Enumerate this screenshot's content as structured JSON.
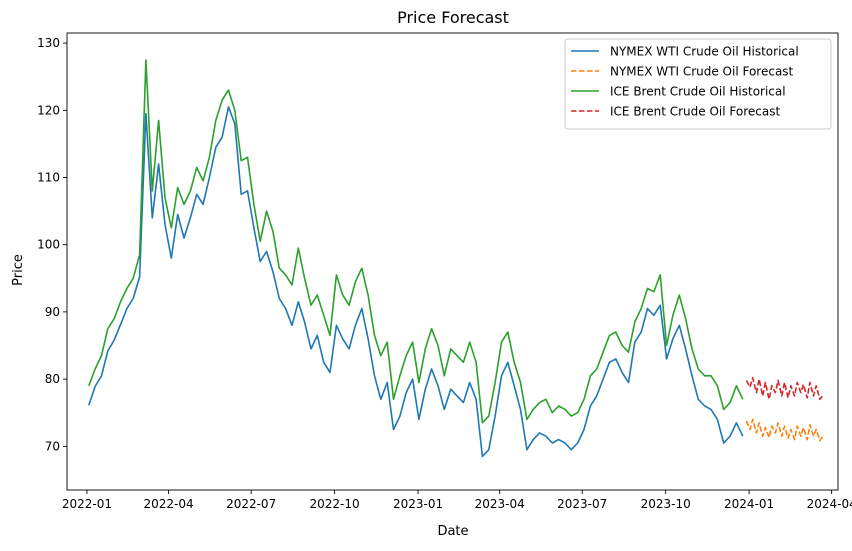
{
  "chart_data": {
    "type": "line",
    "title": "Price Forecast",
    "xlabel": "Date",
    "ylabel": "Price",
    "x_ticks": [
      "2022-01",
      "2022-04",
      "2022-07",
      "2022-10",
      "2023-01",
      "2023-04",
      "2023-07",
      "2023-10",
      "2024-01",
      "2024-04"
    ],
    "y_ticks": [
      "70",
      "80",
      "90",
      "100",
      "110",
      "120",
      "130"
    ],
    "xlim": [
      "2021-12-10",
      "2024-04-08"
    ],
    "ylim": [
      63.5,
      131.5
    ],
    "grid": false,
    "legend_position": "top-right",
    "series": [
      {
        "name": "NYMEX WTI Crude Oil Historical",
        "color": "#1f77b4",
        "dash": "solid",
        "points": [
          [
            "2022-01-03",
            76.1
          ],
          [
            "2022-01-10",
            78.9
          ],
          [
            "2022-01-17",
            80.5
          ],
          [
            "2022-01-24",
            84.2
          ],
          [
            "2022-01-31",
            85.8
          ],
          [
            "2022-02-07",
            88.1
          ],
          [
            "2022-02-14",
            90.5
          ],
          [
            "2022-02-21",
            92.0
          ],
          [
            "2022-02-28",
            95.2
          ],
          [
            "2022-03-07",
            119.5
          ],
          [
            "2022-03-14",
            104.0
          ],
          [
            "2022-03-21",
            112.0
          ],
          [
            "2022-03-28",
            103.0
          ],
          [
            "2022-04-04",
            98.0
          ],
          [
            "2022-04-11",
            104.5
          ],
          [
            "2022-04-18",
            101.0
          ],
          [
            "2022-04-25",
            104.0
          ],
          [
            "2022-05-02",
            107.5
          ],
          [
            "2022-05-09",
            106.0
          ],
          [
            "2022-05-16",
            110.0
          ],
          [
            "2022-05-23",
            114.5
          ],
          [
            "2022-05-30",
            116.0
          ],
          [
            "2022-06-06",
            120.5
          ],
          [
            "2022-06-13",
            118.0
          ],
          [
            "2022-06-20",
            107.5
          ],
          [
            "2022-06-27",
            108.0
          ],
          [
            "2022-07-04",
            102.5
          ],
          [
            "2022-07-11",
            97.5
          ],
          [
            "2022-07-18",
            99.0
          ],
          [
            "2022-07-25",
            96.0
          ],
          [
            "2022-08-01",
            92.0
          ],
          [
            "2022-08-08",
            90.5
          ],
          [
            "2022-08-15",
            88.0
          ],
          [
            "2022-08-22",
            91.5
          ],
          [
            "2022-08-29",
            88.5
          ],
          [
            "2022-09-05",
            84.5
          ],
          [
            "2022-09-12",
            86.5
          ],
          [
            "2022-09-19",
            82.5
          ],
          [
            "2022-09-26",
            81.0
          ],
          [
            "2022-10-03",
            88.0
          ],
          [
            "2022-10-10",
            86.0
          ],
          [
            "2022-10-17",
            84.5
          ],
          [
            "2022-10-24",
            88.0
          ],
          [
            "2022-10-31",
            90.5
          ],
          [
            "2022-11-07",
            86.0
          ],
          [
            "2022-11-14",
            80.5
          ],
          [
            "2022-11-21",
            77.0
          ],
          [
            "2022-11-28",
            79.5
          ],
          [
            "2022-12-05",
            72.5
          ],
          [
            "2022-12-12",
            74.5
          ],
          [
            "2022-12-19",
            78.0
          ],
          [
            "2022-12-26",
            80.0
          ],
          [
            "2023-01-02",
            74.0
          ],
          [
            "2023-01-09",
            78.5
          ],
          [
            "2023-01-16",
            81.5
          ],
          [
            "2023-01-23",
            79.0
          ],
          [
            "2023-01-30",
            75.5
          ],
          [
            "2023-02-06",
            78.5
          ],
          [
            "2023-02-13",
            77.5
          ],
          [
            "2023-02-20",
            76.5
          ],
          [
            "2023-02-27",
            79.5
          ],
          [
            "2023-03-06",
            77.0
          ],
          [
            "2023-03-13",
            68.5
          ],
          [
            "2023-03-20",
            69.5
          ],
          [
            "2023-03-27",
            74.5
          ],
          [
            "2023-04-03",
            80.5
          ],
          [
            "2023-04-10",
            82.5
          ],
          [
            "2023-04-17",
            79.0
          ],
          [
            "2023-04-24",
            75.5
          ],
          [
            "2023-05-01",
            69.5
          ],
          [
            "2023-05-08",
            71.0
          ],
          [
            "2023-05-15",
            72.0
          ],
          [
            "2023-05-22",
            71.5
          ],
          [
            "2023-05-29",
            70.5
          ],
          [
            "2023-06-05",
            71.0
          ],
          [
            "2023-06-12",
            70.5
          ],
          [
            "2023-06-19",
            69.5
          ],
          [
            "2023-06-26",
            70.5
          ],
          [
            "2023-07-03",
            72.5
          ],
          [
            "2023-07-10",
            76.0
          ],
          [
            "2023-07-17",
            77.5
          ],
          [
            "2023-07-24",
            80.0
          ],
          [
            "2023-07-31",
            82.5
          ],
          [
            "2023-08-07",
            83.0
          ],
          [
            "2023-08-14",
            81.0
          ],
          [
            "2023-08-21",
            79.5
          ],
          [
            "2023-08-28",
            85.5
          ],
          [
            "2023-09-04",
            87.0
          ],
          [
            "2023-09-11",
            90.5
          ],
          [
            "2023-09-18",
            89.5
          ],
          [
            "2023-09-25",
            91.0
          ],
          [
            "2023-10-02",
            83.0
          ],
          [
            "2023-10-09",
            86.0
          ],
          [
            "2023-10-16",
            88.0
          ],
          [
            "2023-10-23",
            84.5
          ],
          [
            "2023-10-30",
            80.5
          ],
          [
            "2023-11-06",
            77.0
          ],
          [
            "2023-11-13",
            76.0
          ],
          [
            "2023-11-20",
            75.5
          ],
          [
            "2023-11-27",
            74.0
          ],
          [
            "2023-12-04",
            70.5
          ],
          [
            "2023-12-11",
            71.5
          ],
          [
            "2023-12-18",
            73.5
          ],
          [
            "2023-12-25",
            71.5
          ]
        ]
      },
      {
        "name": "NYMEX WTI Crude Oil Forecast",
        "color": "#ff7f0e",
        "dash": "dashed",
        "points": [
          [
            "2023-12-29",
            73.8
          ],
          [
            "2024-01-02",
            72.5
          ],
          [
            "2024-01-05",
            74.0
          ],
          [
            "2024-01-09",
            72.0
          ],
          [
            "2024-01-12",
            73.5
          ],
          [
            "2024-01-16",
            71.5
          ],
          [
            "2024-01-19",
            72.8
          ],
          [
            "2024-01-23",
            71.3
          ],
          [
            "2024-01-26",
            73.0
          ],
          [
            "2024-01-30",
            72.0
          ],
          [
            "2024-02-02",
            73.5
          ],
          [
            "2024-02-06",
            71.5
          ],
          [
            "2024-02-09",
            73.0
          ],
          [
            "2024-02-13",
            71.2
          ],
          [
            "2024-02-16",
            72.5
          ],
          [
            "2024-02-20",
            71.0
          ],
          [
            "2024-02-23",
            73.0
          ],
          [
            "2024-02-27",
            71.5
          ],
          [
            "2024-03-01",
            72.8
          ],
          [
            "2024-03-05",
            71.0
          ],
          [
            "2024-03-08",
            73.2
          ],
          [
            "2024-03-12",
            71.5
          ],
          [
            "2024-03-15",
            72.5
          ],
          [
            "2024-03-19",
            70.8
          ],
          [
            "2024-03-22",
            71.5
          ]
        ]
      },
      {
        "name": "ICE Brent Crude Oil Historical",
        "color": "#2ca02c",
        "dash": "solid",
        "points": [
          [
            "2022-01-03",
            79.0
          ],
          [
            "2022-01-10",
            81.5
          ],
          [
            "2022-01-17",
            83.5
          ],
          [
            "2022-01-24",
            87.5
          ],
          [
            "2022-01-31",
            89.0
          ],
          [
            "2022-02-07",
            91.5
          ],
          [
            "2022-02-14",
            93.5
          ],
          [
            "2022-02-21",
            95.0
          ],
          [
            "2022-02-28",
            98.5
          ],
          [
            "2022-03-07",
            127.5
          ],
          [
            "2022-03-14",
            108.0
          ],
          [
            "2022-03-21",
            118.5
          ],
          [
            "2022-03-28",
            107.0
          ],
          [
            "2022-04-04",
            102.5
          ],
          [
            "2022-04-11",
            108.5
          ],
          [
            "2022-04-18",
            106.0
          ],
          [
            "2022-04-25",
            108.0
          ],
          [
            "2022-05-02",
            111.5
          ],
          [
            "2022-05-09",
            109.5
          ],
          [
            "2022-05-16",
            113.0
          ],
          [
            "2022-05-23",
            118.5
          ],
          [
            "2022-05-30",
            121.5
          ],
          [
            "2022-06-06",
            123.0
          ],
          [
            "2022-06-13",
            120.0
          ],
          [
            "2022-06-20",
            112.5
          ],
          [
            "2022-06-27",
            113.0
          ],
          [
            "2022-07-04",
            106.0
          ],
          [
            "2022-07-11",
            100.5
          ],
          [
            "2022-07-18",
            105.0
          ],
          [
            "2022-07-25",
            102.0
          ],
          [
            "2022-08-01",
            96.5
          ],
          [
            "2022-08-08",
            95.5
          ],
          [
            "2022-08-15",
            94.0
          ],
          [
            "2022-08-22",
            99.5
          ],
          [
            "2022-08-29",
            95.0
          ],
          [
            "2022-09-05",
            91.0
          ],
          [
            "2022-09-12",
            92.5
          ],
          [
            "2022-09-19",
            89.5
          ],
          [
            "2022-09-26",
            86.5
          ],
          [
            "2022-10-03",
            95.5
          ],
          [
            "2022-10-10",
            92.5
          ],
          [
            "2022-10-17",
            91.0
          ],
          [
            "2022-10-24",
            94.5
          ],
          [
            "2022-10-31",
            96.5
          ],
          [
            "2022-11-07",
            92.5
          ],
          [
            "2022-11-14",
            86.5
          ],
          [
            "2022-11-21",
            83.5
          ],
          [
            "2022-11-28",
            85.5
          ],
          [
            "2022-12-05",
            77.0
          ],
          [
            "2022-12-12",
            80.5
          ],
          [
            "2022-12-19",
            83.5
          ],
          [
            "2022-12-26",
            85.5
          ],
          [
            "2023-01-02",
            79.5
          ],
          [
            "2023-01-09",
            84.5
          ],
          [
            "2023-01-16",
            87.5
          ],
          [
            "2023-01-23",
            85.0
          ],
          [
            "2023-01-30",
            80.5
          ],
          [
            "2023-02-06",
            84.5
          ],
          [
            "2023-02-13",
            83.5
          ],
          [
            "2023-02-20",
            82.5
          ],
          [
            "2023-02-27",
            85.5
          ],
          [
            "2023-03-06",
            82.5
          ],
          [
            "2023-03-13",
            73.5
          ],
          [
            "2023-03-20",
            74.5
          ],
          [
            "2023-03-27",
            79.5
          ],
          [
            "2023-04-03",
            85.5
          ],
          [
            "2023-04-10",
            87.0
          ],
          [
            "2023-04-17",
            82.5
          ],
          [
            "2023-04-24",
            79.5
          ],
          [
            "2023-05-01",
            74.0
          ],
          [
            "2023-05-08",
            75.5
          ],
          [
            "2023-05-15",
            76.5
          ],
          [
            "2023-05-22",
            77.0
          ],
          [
            "2023-05-29",
            75.0
          ],
          [
            "2023-06-05",
            76.0
          ],
          [
            "2023-06-12",
            75.5
          ],
          [
            "2023-06-19",
            74.5
          ],
          [
            "2023-06-26",
            75.0
          ],
          [
            "2023-07-03",
            77.0
          ],
          [
            "2023-07-10",
            80.5
          ],
          [
            "2023-07-17",
            81.5
          ],
          [
            "2023-07-24",
            84.0
          ],
          [
            "2023-07-31",
            86.5
          ],
          [
            "2023-08-07",
            87.0
          ],
          [
            "2023-08-14",
            85.0
          ],
          [
            "2023-08-21",
            84.0
          ],
          [
            "2023-08-28",
            88.5
          ],
          [
            "2023-09-04",
            90.5
          ],
          [
            "2023-09-11",
            93.5
          ],
          [
            "2023-09-18",
            93.0
          ],
          [
            "2023-09-25",
            95.5
          ],
          [
            "2023-10-02",
            85.0
          ],
          [
            "2023-10-09",
            89.5
          ],
          [
            "2023-10-16",
            92.5
          ],
          [
            "2023-10-23",
            89.0
          ],
          [
            "2023-10-30",
            84.5
          ],
          [
            "2023-11-06",
            81.5
          ],
          [
            "2023-11-13",
            80.5
          ],
          [
            "2023-11-20",
            80.5
          ],
          [
            "2023-11-27",
            79.0
          ],
          [
            "2023-12-04",
            75.5
          ],
          [
            "2023-12-11",
            76.5
          ],
          [
            "2023-12-18",
            79.0
          ],
          [
            "2023-12-25",
            77.0
          ]
        ]
      },
      {
        "name": "ICE Brent Crude Oil Forecast",
        "color": "#d62728",
        "dash": "dashed",
        "points": [
          [
            "2023-12-29",
            79.8
          ],
          [
            "2024-01-02",
            78.8
          ],
          [
            "2024-01-05",
            80.2
          ],
          [
            "2024-01-09",
            78.0
          ],
          [
            "2024-01-12",
            80.0
          ],
          [
            "2024-01-16",
            77.5
          ],
          [
            "2024-01-19",
            79.5
          ],
          [
            "2024-01-23",
            77.0
          ],
          [
            "2024-01-26",
            79.0
          ],
          [
            "2024-01-30",
            78.0
          ],
          [
            "2024-02-02",
            79.8
          ],
          [
            "2024-02-06",
            77.5
          ],
          [
            "2024-02-09",
            79.5
          ],
          [
            "2024-02-13",
            77.2
          ],
          [
            "2024-02-16",
            79.0
          ],
          [
            "2024-02-20",
            77.5
          ],
          [
            "2024-02-23",
            79.5
          ],
          [
            "2024-02-27",
            78.0
          ],
          [
            "2024-03-01",
            79.2
          ],
          [
            "2024-03-05",
            77.2
          ],
          [
            "2024-03-08",
            79.5
          ],
          [
            "2024-03-12",
            77.5
          ],
          [
            "2024-03-15",
            79.0
          ],
          [
            "2024-03-19",
            77.0
          ],
          [
            "2024-03-22",
            77.5
          ]
        ]
      }
    ]
  }
}
